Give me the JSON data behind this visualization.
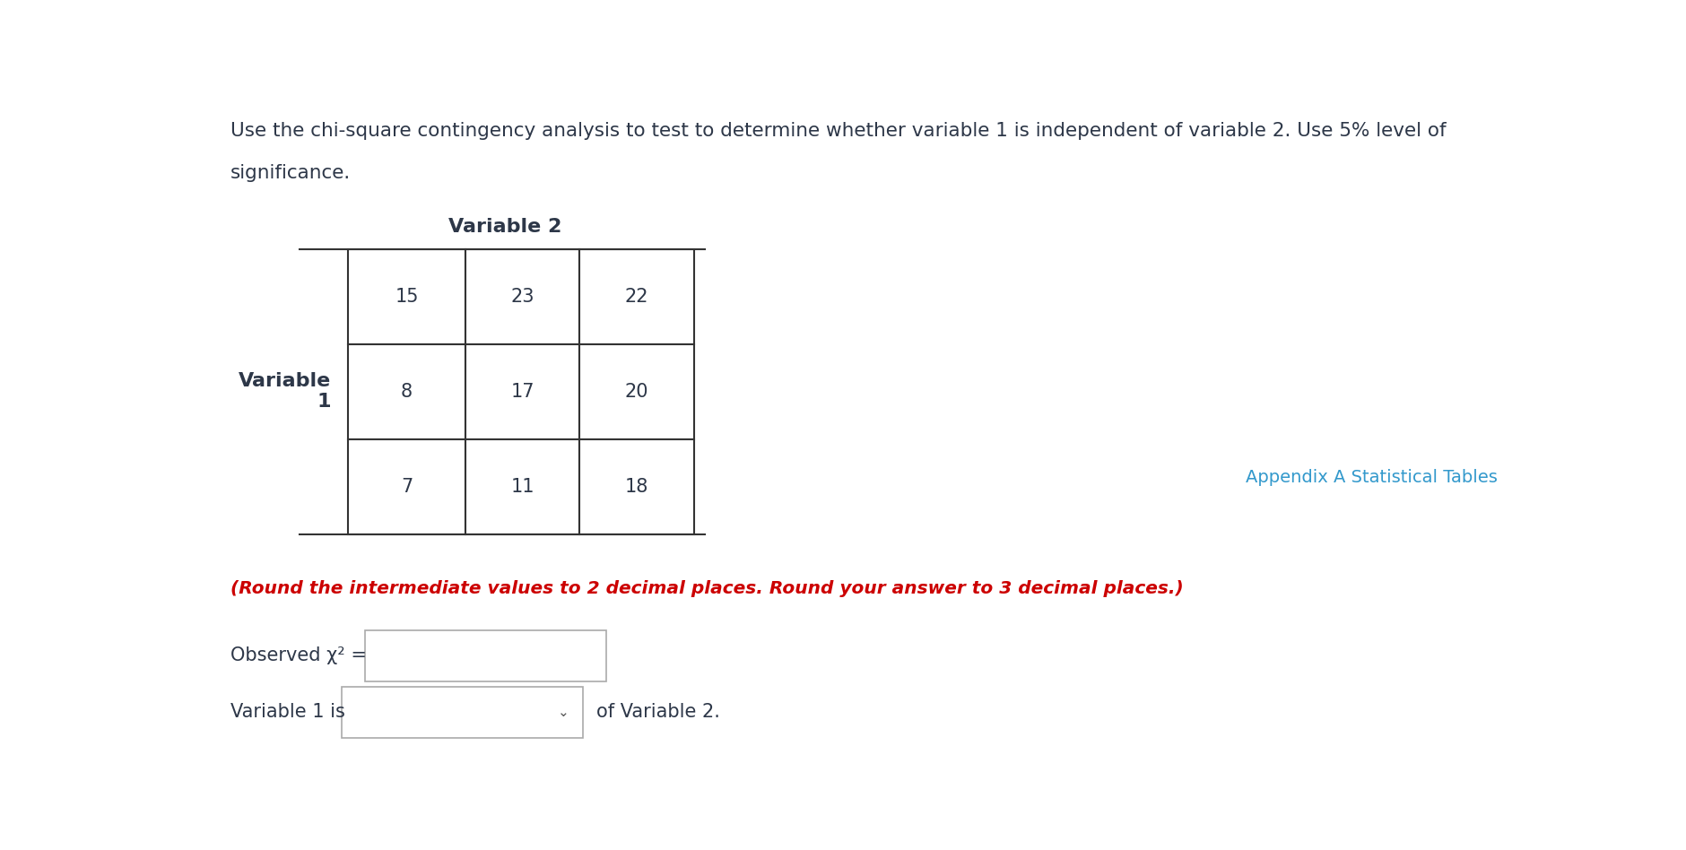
{
  "title_line1": "Use the chi-square contingency analysis to test to determine whether variable 1 is independent of variable 2. Use 5% level of",
  "title_line2": "significance.",
  "title_color": "#2d3748",
  "title_fontsize": 15.5,
  "var2_label": "Variable 2",
  "var1_label": "Variable\n1",
  "var1_label_color": "#2d3748",
  "var2_label_color": "#2d3748",
  "label_fontsize": 15,
  "table_data": [
    [
      15,
      23,
      22
    ],
    [
      8,
      17,
      20
    ],
    [
      7,
      11,
      18
    ]
  ],
  "table_fontsize": 15,
  "table_color": "#2d3748",
  "appendix_text": "Appendix A Statistical Tables",
  "appendix_color": "#3399cc",
  "appendix_fontsize": 14,
  "round_note": "(Round the intermediate values to 2 decimal places. Round your answer to 3 decimal places.)",
  "round_note_color": "#cc0000",
  "round_note_fontsize": 14.5,
  "observed_label": "Observed χ² =",
  "observed_label_fontsize": 15,
  "observed_label_color": "#2d3748",
  "var1is_label": "Variable 1 is",
  "var1is_label_fontsize": 15,
  "var1is_label_color": "#2d3748",
  "of_var2_label": "of Variable 2.",
  "of_var2_label_fontsize": 15,
  "of_var2_label_color": "#2d3748",
  "background_color": "#ffffff"
}
